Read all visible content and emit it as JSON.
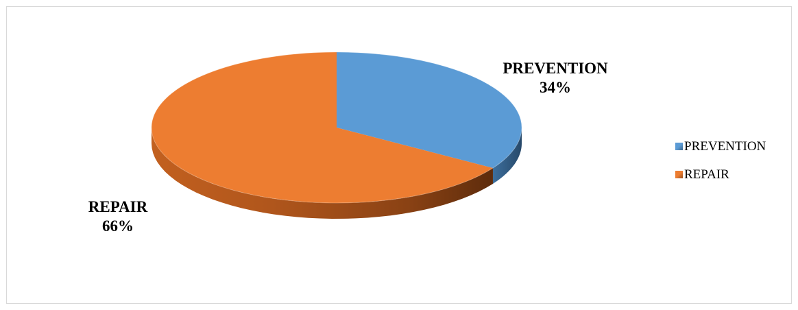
{
  "chart_data": {
    "type": "pie",
    "slices": [
      {
        "label": "PREVENTION",
        "value": 34,
        "display": "34%",
        "color": "#5b9bd5"
      },
      {
        "label": "REPAIR",
        "value": 66,
        "display": "66%",
        "color": "#ed7d31"
      }
    ],
    "legend": {
      "position": "right",
      "entries": [
        "PREVENTION",
        "REPAIR"
      ]
    },
    "style": "3d"
  }
}
